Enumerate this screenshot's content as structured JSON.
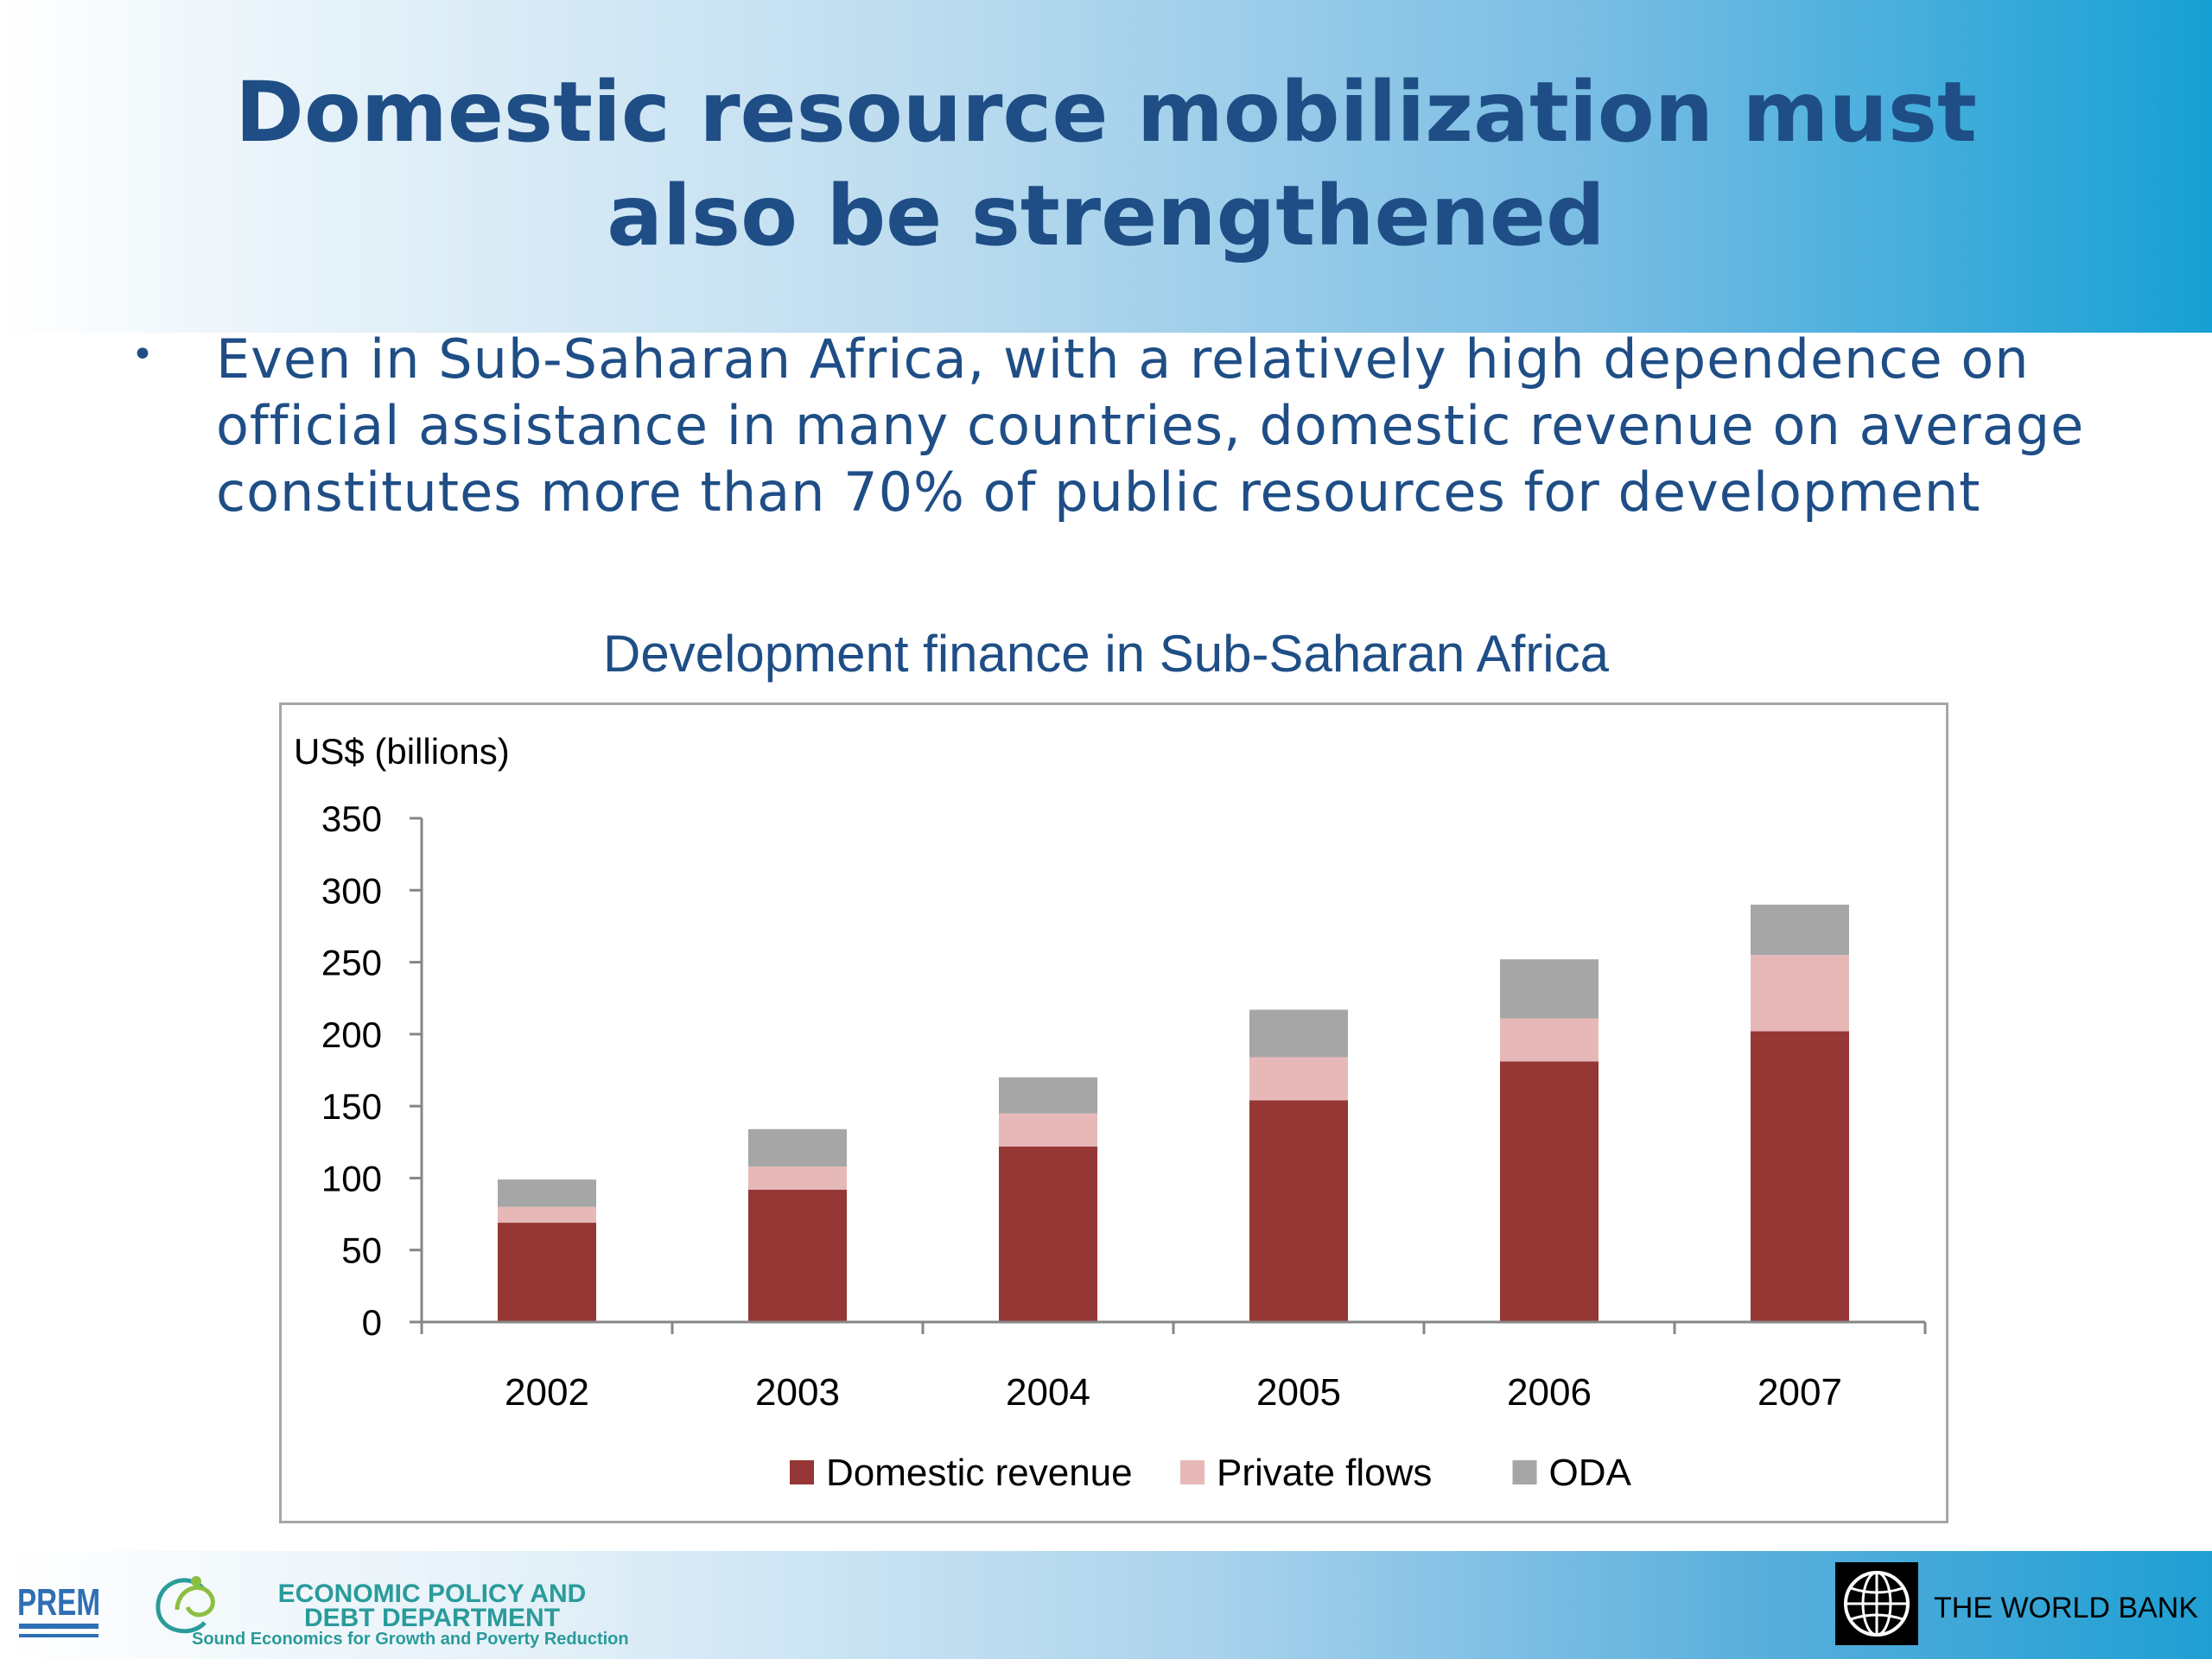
{
  "slide": {
    "title_line1": "Domestic resource mobilization must",
    "title_line2": "also be strengthened",
    "bullet_marker": "•",
    "bullet_text": "Even in Sub-Saharan Africa, with a relatively high dependence on official assistance in many countries, domestic revenue on average constitutes more than 70% of public resources for development"
  },
  "footer": {
    "prem_logo_text": "PREM",
    "epd_line1": "ECONOMIC POLICY AND",
    "epd_line2": "DEBT DEPARTMENT",
    "epd_tagline": "Sound Economics for Growth and Poverty Reduction",
    "world_bank_text": "THE WORLD BANK",
    "icons": [
      "prem-logo",
      "epd-logo",
      "world-bank-globe-logo"
    ]
  },
  "chart_data": {
    "type": "bar",
    "stacked": true,
    "title": "Development finance in Sub-Saharan Africa",
    "ylabel": "US$ (billions)",
    "xlabel": "",
    "categories": [
      "2002",
      "2003",
      "2004",
      "2005",
      "2006",
      "2007"
    ],
    "ylim": [
      0,
      350
    ],
    "yticks": [
      0,
      50,
      100,
      150,
      200,
      250,
      300,
      350
    ],
    "grid": false,
    "legend_position": "bottom",
    "series": [
      {
        "name": "Domestic revenue",
        "color": "#953735",
        "values": [
          69,
          92,
          122,
          154,
          181,
          202
        ]
      },
      {
        "name": "Private flows",
        "color": "#e6b9b8",
        "values": [
          11,
          16,
          23,
          30,
          30,
          53
        ]
      },
      {
        "name": "ODA",
        "color": "#a6a6a6",
        "values": [
          19,
          26,
          25,
          33,
          41,
          35
        ]
      }
    ]
  }
}
